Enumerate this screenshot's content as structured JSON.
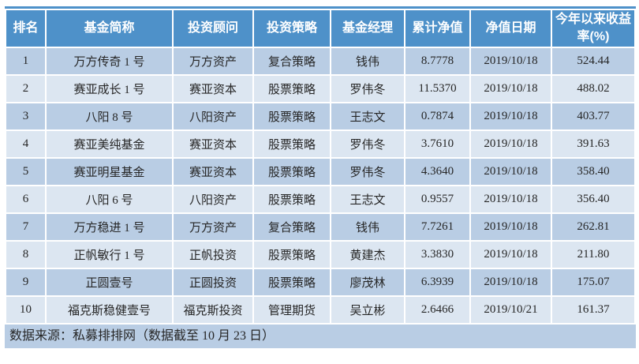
{
  "colors": {
    "header_bg": "#4e91c9",
    "header_text": "#ffffff",
    "row_dark_bg": "#b9cde4",
    "row_light_bg": "#dce6f1",
    "footer_bg": "#b9cde4",
    "body_text": "#262626"
  },
  "chart_data": {
    "type": "table",
    "columns": [
      "排名",
      "基金简称",
      "投资顾问",
      "投资策略",
      "基金经理",
      "累计净值",
      "净值日期",
      "今年以来收益率(%)"
    ],
    "rows": [
      [
        "1",
        "万方传奇 1 号",
        "万方资产",
        "复合策略",
        "钱伟",
        "8.7778",
        "2019/10/18",
        "524.44"
      ],
      [
        "2",
        "赛亚成长 1 号",
        "赛亚资本",
        "股票策略",
        "罗伟冬",
        "11.5370",
        "2019/10/18",
        "488.02"
      ],
      [
        "3",
        "八阳 8 号",
        "八阳资产",
        "股票策略",
        "王志文",
        "0.7874",
        "2019/10/18",
        "403.77"
      ],
      [
        "4",
        "赛亚美纯基金",
        "赛亚资本",
        "股票策略",
        "罗伟冬",
        "3.7610",
        "2019/10/18",
        "391.63"
      ],
      [
        "5",
        "赛亚明星基金",
        "赛亚资本",
        "股票策略",
        "罗伟冬",
        "4.3640",
        "2019/10/18",
        "358.40"
      ],
      [
        "6",
        "八阳 6 号",
        "八阳资产",
        "股票策略",
        "王志文",
        "0.9557",
        "2019/10/18",
        "356.40"
      ],
      [
        "7",
        "万方稳进 1 号",
        "万方资产",
        "复合策略",
        "钱伟",
        "7.7261",
        "2019/10/18",
        "262.81"
      ],
      [
        "8",
        "正帆敏行 1 号",
        "正帆投资",
        "股票策略",
        "黄建杰",
        "3.3830",
        "2019/10/18",
        "211.80"
      ],
      [
        "9",
        "正圆壹号",
        "正圆投资",
        "股票策略",
        "廖茂林",
        "6.3939",
        "2019/10/18",
        "175.07"
      ],
      [
        "10",
        "福克斯稳健壹号",
        "福克斯投资",
        "管理期货",
        "吴立彬",
        "2.6466",
        "2019/10/21",
        "161.37"
      ]
    ],
    "source_note": "数据来源：私募排排网（数据截至 10 月 23 日）"
  }
}
